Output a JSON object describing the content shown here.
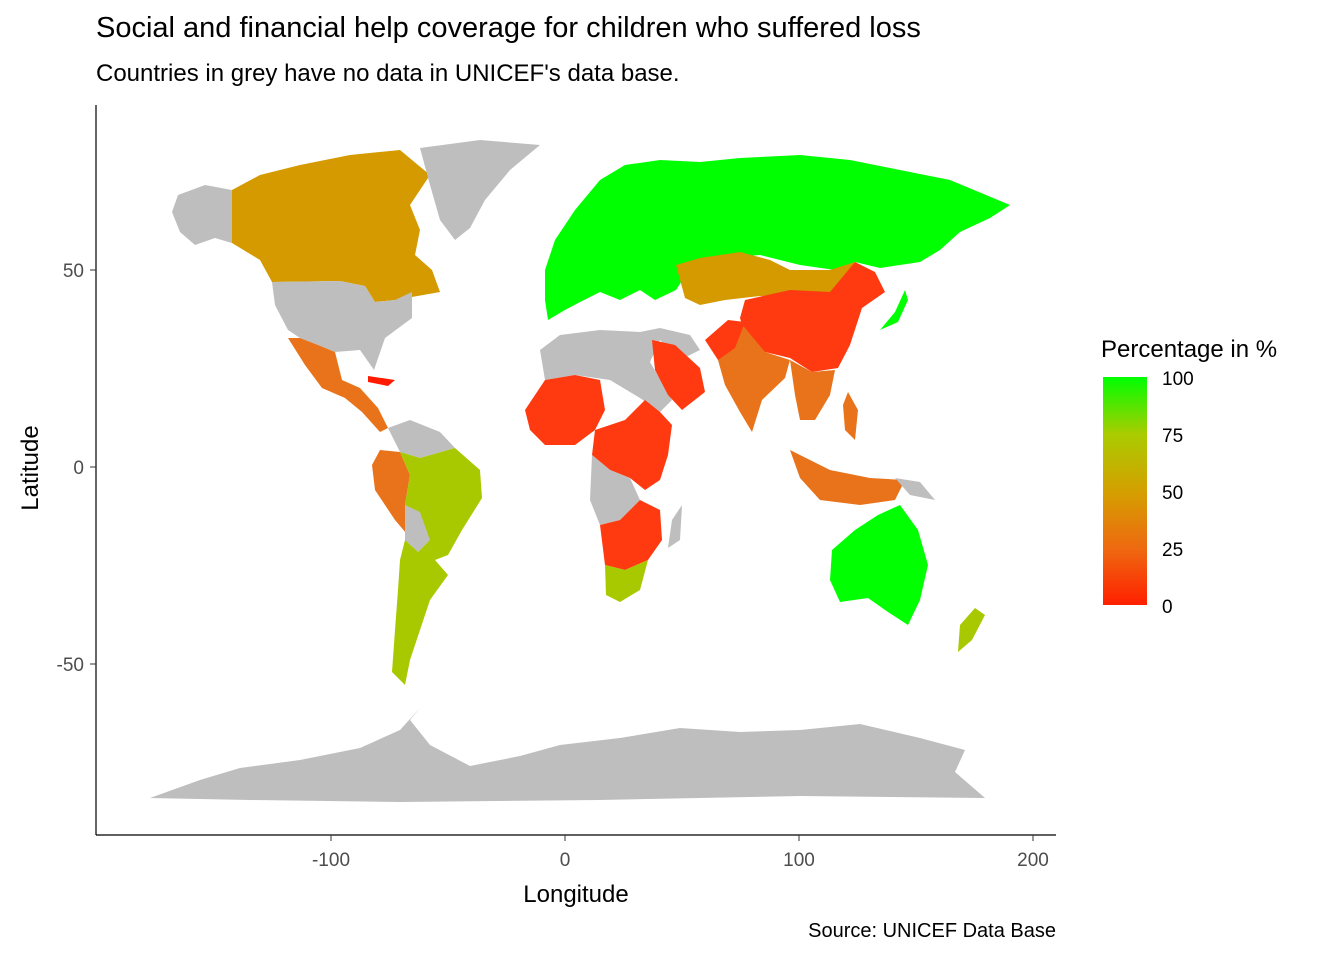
{
  "title": "Social and financial help coverage for children who suffered loss",
  "subtitle": "Countries in grey have no data in UNICEF's data base.",
  "caption": "Source: UNICEF Data Base",
  "axes": {
    "x_title": "Longitude",
    "y_title": "Latitude",
    "x_ticks": [
      "-100",
      "0",
      "100",
      "200"
    ],
    "y_ticks": [
      "50",
      "0",
      "-50"
    ]
  },
  "legend": {
    "title": "Percentage in %",
    "labels": [
      "100",
      "75",
      "50",
      "25",
      "0"
    ],
    "scale_colors": [
      "#ff2000",
      "#00ff00"
    ]
  },
  "colors": {
    "no_data": "#bebebe",
    "high": "#00ff00",
    "mid_high": "#a8c800",
    "mid": "#d49a00",
    "mid_low": "#e8731a",
    "low": "#ff3a10",
    "very_low": "#ff1a00"
  },
  "chart_data": {
    "type": "map",
    "xlabel": "Longitude",
    "ylabel": "Latitude",
    "xlim": [
      -190,
      210
    ],
    "ylim": [
      -90,
      92
    ],
    "value_range": [
      0,
      100
    ],
    "regions": [
      {
        "name": "Russia / Northern Europe",
        "value": 100
      },
      {
        "name": "Australia",
        "value": 100
      },
      {
        "name": "Japan",
        "value": 88
      },
      {
        "name": "Brazil",
        "value": 70
      },
      {
        "name": "Argentina",
        "value": 78
      },
      {
        "name": "South Africa",
        "value": 80
      },
      {
        "name": "Kazakhstan / Mongolia",
        "value": 60
      },
      {
        "name": "New Zealand",
        "value": 68
      },
      {
        "name": "Canada",
        "value": 48
      },
      {
        "name": "India",
        "value": 32
      },
      {
        "name": "Indonesia",
        "value": 28
      },
      {
        "name": "Mexico",
        "value": 30
      },
      {
        "name": "China",
        "value": 8
      },
      {
        "name": "Saudi Arabia",
        "value": 10
      },
      {
        "name": "East Africa",
        "value": 15
      },
      {
        "name": "West Africa",
        "value": 15
      }
    ]
  }
}
